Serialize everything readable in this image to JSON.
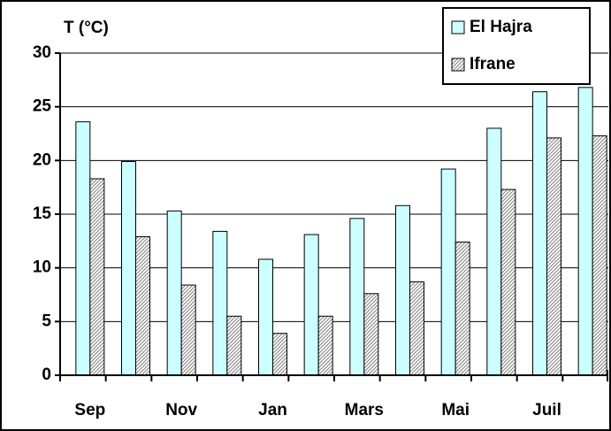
{
  "chart_data": {
    "type": "bar",
    "title": "T (°C)",
    "categories": [
      "Sep",
      null,
      "Nov",
      null,
      "Jan",
      null,
      "Mars",
      null,
      "Mai",
      null,
      "Juil",
      null
    ],
    "series": [
      {
        "name": "El Hajra",
        "color": "#ccffff",
        "values": [
          23.6,
          19.9,
          15.3,
          13.4,
          10.8,
          13.1,
          14.6,
          15.8,
          19.2,
          23.0,
          26.4,
          26.8
        ]
      },
      {
        "name": "Ifrane",
        "color": "#808080",
        "hatch": true,
        "values": [
          18.3,
          12.9,
          8.4,
          5.5,
          3.9,
          5.5,
          7.6,
          8.7,
          12.4,
          17.3,
          22.1,
          22.3
        ]
      }
    ],
    "ylim": [
      0,
      30
    ],
    "yticks": [
      0,
      5,
      10,
      15,
      20,
      25,
      30
    ],
    "grid": true,
    "legend": "top-right"
  }
}
